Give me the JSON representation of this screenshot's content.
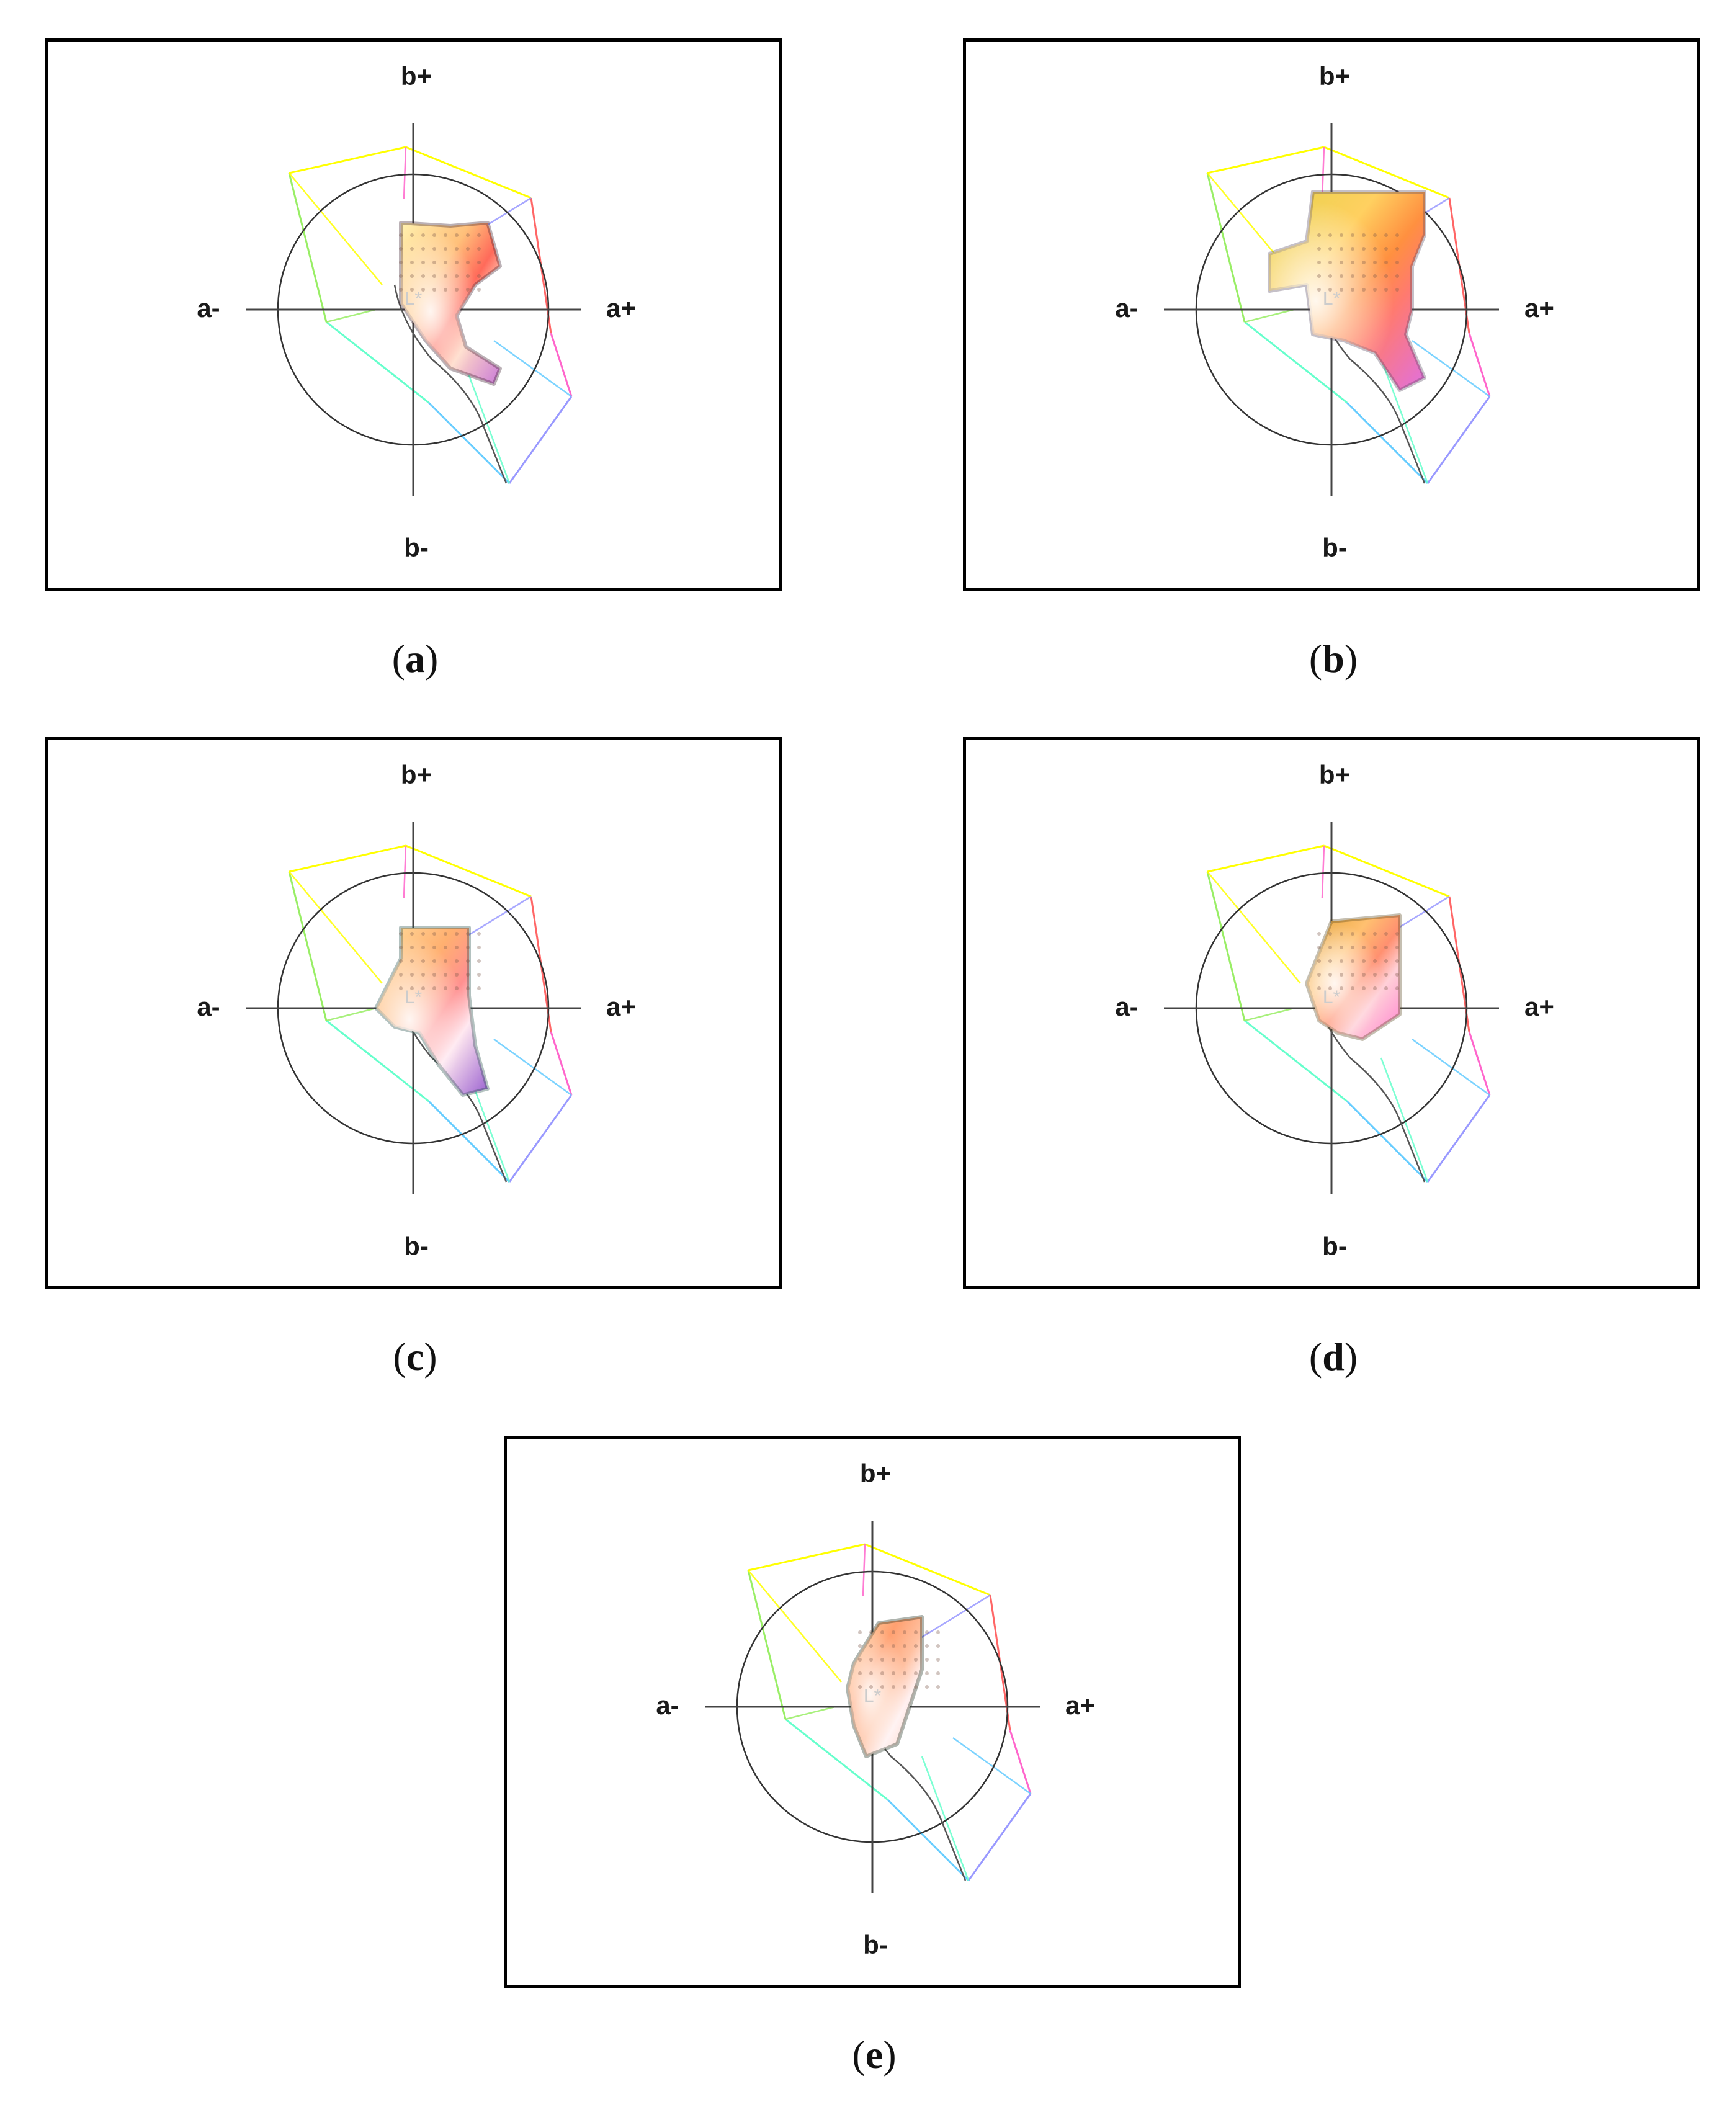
{
  "axis_labels": {
    "b_plus": "b+",
    "b_minus": "b-",
    "a_minus": "a-",
    "a_plus": "a+",
    "center": "L*"
  },
  "gamut_colors": [
    "#ffff00",
    "#ff6666",
    "#ff66cc",
    "#9999ff",
    "#66ccff",
    "#66ffcc",
    "#99ee66"
  ],
  "panels": [
    {
      "id": "a",
      "caption_open": "(",
      "caption_letter": "a",
      "caption_close": ")",
      "cloud_colors": [
        "#fff2b0",
        "#ffc07a",
        "#ff6a5a",
        "#ffd9c6",
        "#b07070",
        "#7a3f55",
        "#c97ad8"
      ],
      "dark_edge": "#3b1f2e"
    },
    {
      "id": "b",
      "caption_open": "(",
      "caption_letter": "b",
      "caption_close": ")",
      "cloud_colors": [
        "#e6d24a",
        "#ffd060",
        "#ff9040",
        "#ff7a70",
        "#64d07a",
        "#ffc0d0",
        "#e070e0"
      ],
      "dark_edge": "#5a4a62"
    },
    {
      "id": "c",
      "caption_open": "(",
      "caption_letter": "c",
      "caption_close": ")",
      "cloud_colors": [
        "#ffe0a0",
        "#ffb070",
        "#ff9090",
        "#ffe8f0",
        "#3a7a70",
        "#b0a0e0",
        "#9a60d0"
      ],
      "dark_edge": "#24504a"
    },
    {
      "id": "d",
      "caption_open": "(",
      "caption_letter": "d",
      "caption_close": ")",
      "cloud_colors": [
        "#e0a030",
        "#ffc070",
        "#ff9070",
        "#ffd0d8",
        "#8a7030",
        "#ffb0e0",
        "#ff80d0"
      ],
      "dark_edge": "#5a4820"
    },
    {
      "id": "e",
      "caption_open": "(",
      "caption_letter": "e",
      "caption_close": ")",
      "cloud_colors": [
        "#ffe0b0",
        "#ffa070",
        "#ffc0a0",
        "#fff0f0",
        "#2a3a2a",
        "#c0c0ff",
        "#ffd0c0"
      ],
      "dark_edge": "#1a2a1a"
    }
  ]
}
